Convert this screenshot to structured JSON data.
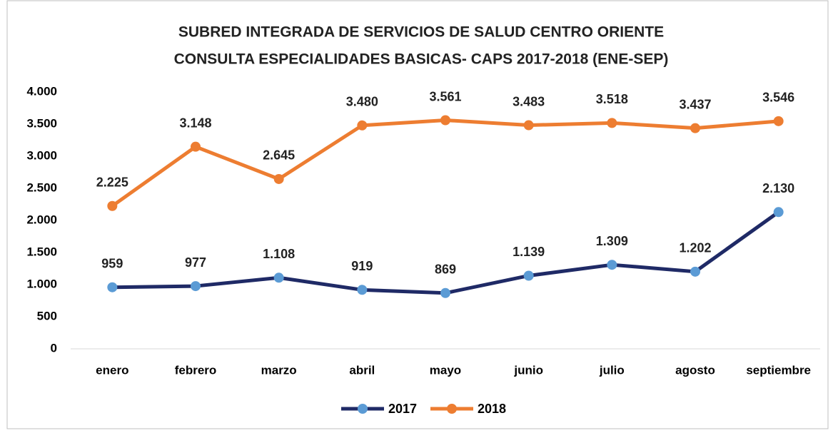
{
  "chart_data": {
    "type": "line",
    "title": "SUBRED INTEGRADA DE SERVICIOS DE SALUD CENTRO ORIENTE",
    "subtitle": "CONSULTA ESPECIALIDADES BASICAS- CAPS  2017-2018 (ENE-SEP)",
    "categories": [
      "enero",
      "febrero",
      "marzo",
      "abril",
      "mayo",
      "junio",
      "julio",
      "agosto",
      "septiembre"
    ],
    "series": [
      {
        "name": "2017",
        "color": "#1f2a66",
        "marker_color": "#5b9bd5",
        "values": [
          959,
          977,
          1108,
          919,
          869,
          1139,
          1309,
          1202,
          2130
        ],
        "value_labels": [
          "959",
          "977",
          "1.108",
          "919",
          "869",
          "1.139",
          "1.309",
          "1.202",
          "2.130"
        ]
      },
      {
        "name": "2018",
        "color": "#ed7d31",
        "marker_color": "#ed7d31",
        "values": [
          2225,
          3148,
          2645,
          3480,
          3561,
          3483,
          3518,
          3437,
          3546
        ],
        "value_labels": [
          "2.225",
          "3.148",
          "2.645",
          "3.480",
          "3.561",
          "3.483",
          "3.518",
          "3.437",
          "3.546"
        ]
      }
    ],
    "ylim": [
      0,
      4000
    ],
    "yticks": [
      0,
      500,
      {
        "value": 1000,
        "label": "1.000"
      },
      {
        "value": 1500,
        "label": "1.500"
      },
      {
        "value": 2000,
        "label": "2.000"
      },
      {
        "value": 2500,
        "label": "2.500"
      },
      {
        "value": 3000,
        "label": "3.000"
      },
      {
        "value": 3500,
        "label": "3.500"
      },
      {
        "value": 4000,
        "label": "4.000"
      }
    ],
    "grid": false,
    "legend": "bottom"
  }
}
